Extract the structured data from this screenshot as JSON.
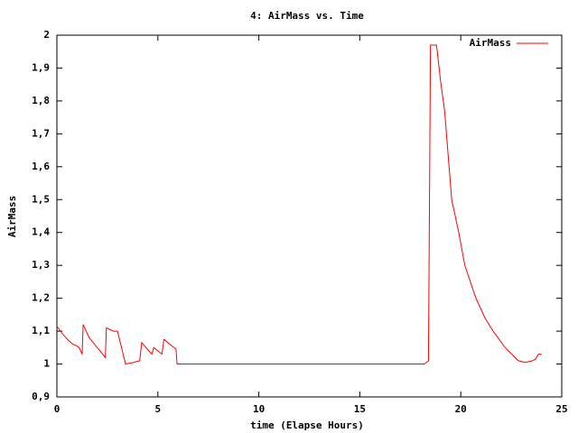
{
  "chart_data": {
    "type": "line",
    "title": "4: AirMass vs. Time",
    "x_label": "time (Elapse Hours)",
    "y_label": "AirMass",
    "legend": "top-right",
    "xlim": [
      0,
      25
    ],
    "xticks": [
      0,
      5,
      10,
      15,
      20,
      25
    ],
    "ylim": [
      0.9,
      2
    ],
    "yticks": [
      {
        "value": 0.9,
        "label": "0,9"
      },
      1,
      {
        "value": 1.1,
        "label": "1,1"
      },
      {
        "value": 1.2,
        "label": "1,2"
      },
      {
        "value": 1.3,
        "label": "1,3"
      },
      {
        "value": 1.4,
        "label": "1,4"
      },
      {
        "value": 1.5,
        "label": "1,5"
      },
      {
        "value": 1.6,
        "label": "1,6"
      },
      {
        "value": 1.7,
        "label": "1,7"
      },
      {
        "value": 1.8,
        "label": "1,8"
      },
      {
        "value": 1.9,
        "label": "1,9"
      },
      2
    ],
    "series": [
      {
        "name": "AirMass",
        "color": "#ff0000",
        "x": [
          0,
          0.3,
          0.6,
          0.8,
          1.0,
          1.1,
          1.25,
          1.3,
          1.6,
          2.0,
          2.4,
          2.45,
          2.8,
          3.0,
          3.4,
          3.8,
          4.1,
          4.2,
          4.7,
          4.8,
          5.2,
          5.3,
          5.9,
          5.95,
          10,
          15,
          18.2,
          18.4,
          18.5,
          18.8,
          19.0,
          19.2,
          19.55,
          19.9,
          20.2,
          20.75,
          21.2,
          21.6,
          22.2,
          22.85,
          23.2,
          23.55,
          23.7,
          23.85,
          24.0
        ],
        "values": [
          1.115,
          1.09,
          1.07,
          1.06,
          1.055,
          1.05,
          1.03,
          1.12,
          1.08,
          1.05,
          1.02,
          1.11,
          1.1,
          1.1,
          1.0,
          1.005,
          1.01,
          1.065,
          1.03,
          1.05,
          1.03,
          1.075,
          1.045,
          1.0,
          1.0,
          1.0,
          1.0,
          1.01,
          1.97,
          1.97,
          1.86,
          1.77,
          1.5,
          1.4,
          1.3,
          1.2,
          1.14,
          1.1,
          1.05,
          1.01,
          1.005,
          1.01,
          1.015,
          1.03,
          1.03
        ]
      }
    ]
  }
}
